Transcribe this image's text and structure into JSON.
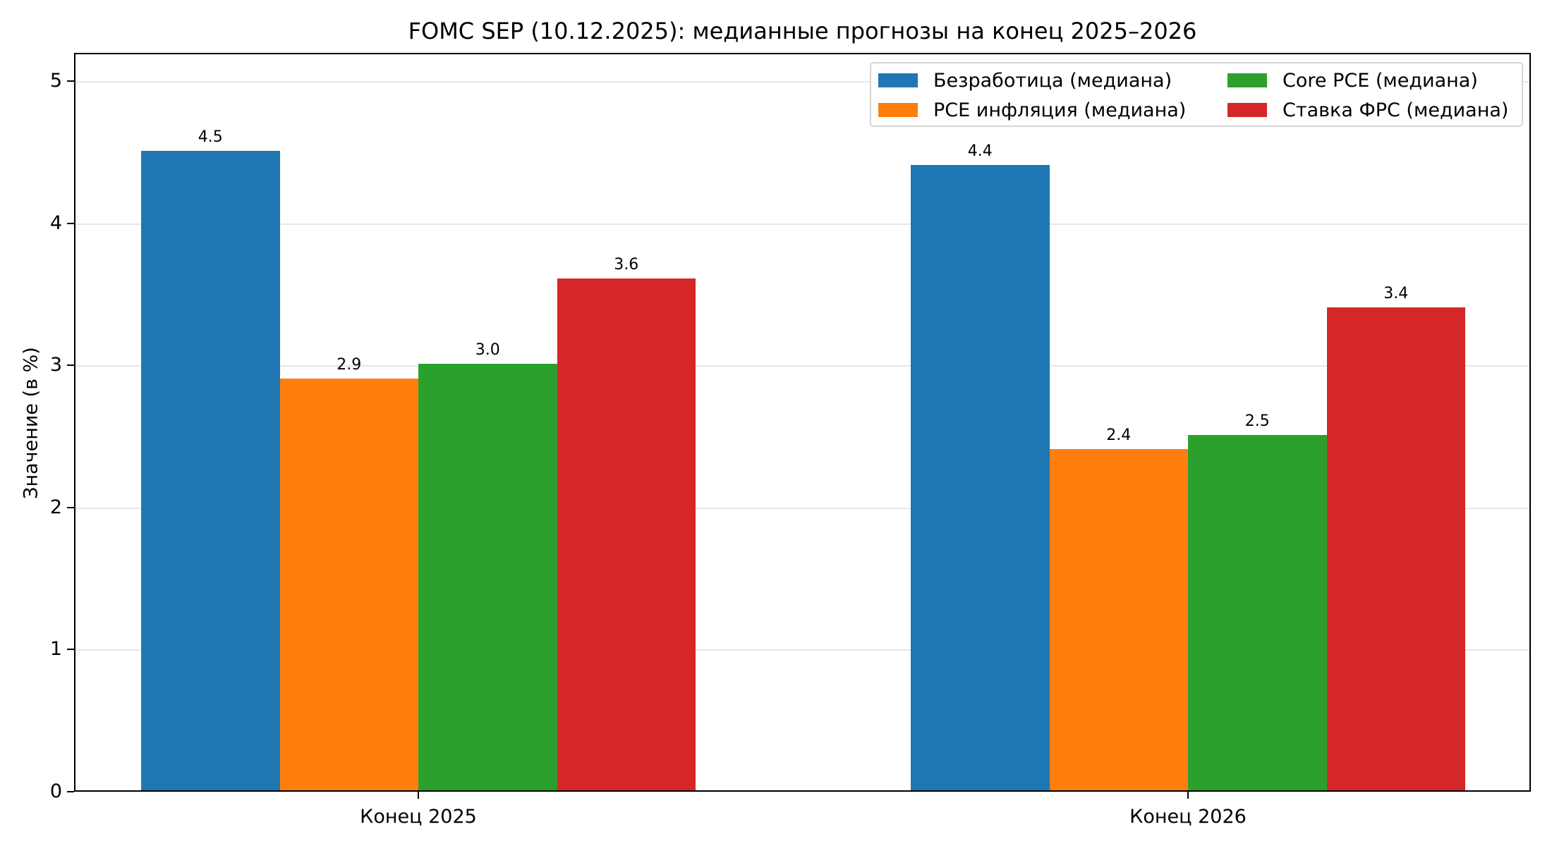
{
  "chart_data": {
    "type": "bar",
    "title": "FOMC SEP (10.12.2025): медианные прогнозы на конец 2025–2026",
    "xlabel": "",
    "ylabel": "Значение (в %)",
    "ylim": [
      0,
      5.2
    ],
    "yticks": [
      "0",
      "1",
      "2",
      "3",
      "4",
      "5"
    ],
    "grid": "y",
    "legend_position": "upper right",
    "categories": [
      "Конец 2025",
      "Конец 2026"
    ],
    "series": [
      {
        "name": "Безработица (медиана)",
        "color": "#1f77b4",
        "values": [
          4.5,
          4.4
        ],
        "labels": [
          "4.5",
          "4.4"
        ]
      },
      {
        "name": "PCE инфляция (медиана)",
        "color": "#ff7f0e",
        "values": [
          2.9,
          2.4
        ],
        "labels": [
          "2.9",
          "2.4"
        ]
      },
      {
        "name": "Core PCE (медиана)",
        "color": "#2ca02c",
        "values": [
          3.0,
          2.5
        ],
        "labels": [
          "3.0",
          "2.5"
        ]
      },
      {
        "name": "Ставка ФРС (медиана)",
        "color": "#d62728",
        "values": [
          3.6,
          3.4
        ],
        "labels": [
          "3.6",
          "3.4"
        ]
      }
    ]
  }
}
